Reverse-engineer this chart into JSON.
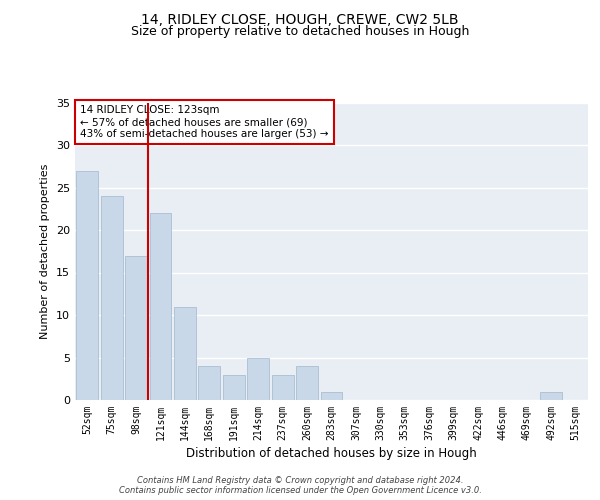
{
  "title1": "14, RIDLEY CLOSE, HOUGH, CREWE, CW2 5LB",
  "title2": "Size of property relative to detached houses in Hough",
  "xlabel": "Distribution of detached houses by size in Hough",
  "ylabel": "Number of detached properties",
  "categories": [
    "52sqm",
    "75sqm",
    "98sqm",
    "121sqm",
    "144sqm",
    "168sqm",
    "191sqm",
    "214sqm",
    "237sqm",
    "260sqm",
    "283sqm",
    "307sqm",
    "330sqm",
    "353sqm",
    "376sqm",
    "399sqm",
    "422sqm",
    "446sqm",
    "469sqm",
    "492sqm",
    "515sqm"
  ],
  "values": [
    27,
    24,
    17,
    22,
    11,
    4,
    3,
    5,
    3,
    4,
    1,
    0,
    0,
    0,
    0,
    0,
    0,
    0,
    0,
    1,
    0
  ],
  "bar_color": "#c8d8e8",
  "bar_edge_color": "#a0b8cc",
  "annotation_text": "14 RIDLEY CLOSE: 123sqm\n← 57% of detached houses are smaller (69)\n43% of semi-detached houses are larger (53) →",
  "annotation_box_color": "#ffffff",
  "annotation_box_edge": "#cc0000",
  "vline_color": "#cc0000",
  "vline_x": 2.5,
  "ylim": [
    0,
    35
  ],
  "yticks": [
    0,
    5,
    10,
    15,
    20,
    25,
    30,
    35
  ],
  "background_color": "#e8eef4",
  "footer": "Contains HM Land Registry data © Crown copyright and database right 2024.\nContains public sector information licensed under the Open Government Licence v3.0.",
  "title_fontsize": 10,
  "subtitle_fontsize": 9,
  "ylabel_fontsize": 8,
  "xlabel_fontsize": 8.5,
  "tick_fontsize": 7,
  "annot_fontsize": 7.5,
  "footer_fontsize": 6
}
